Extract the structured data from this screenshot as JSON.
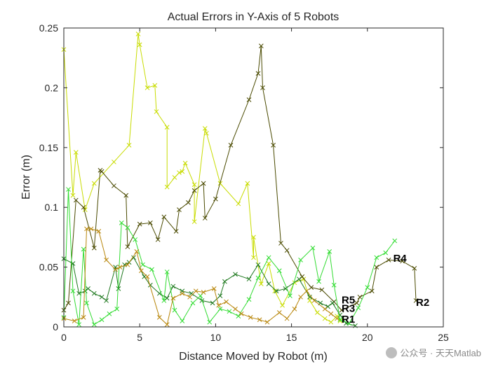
{
  "chart_data": {
    "type": "line",
    "title": "Actual Errors in Y-Axis of 5 Robots",
    "xlabel": "Distance Moved by Robot (m)",
    "ylabel": "Error (m)",
    "xlim": [
      0,
      25
    ],
    "ylim": [
      0,
      0.25
    ],
    "xticks": [
      "0",
      "5",
      "10",
      "15",
      "20",
      "25"
    ],
    "yticks": [
      "0",
      "0.05",
      "0.1",
      "0.15",
      "0.2",
      "0.25"
    ],
    "marker": "x",
    "grid": false,
    "series": [
      {
        "name": "R1",
        "color": "#c8dc00",
        "x": [
          0,
          0.6,
          0.8,
          1.4,
          2.0,
          3.3,
          4.3,
          4.9,
          5.0,
          5.5,
          6.0,
          6.1,
          6.8,
          6.8,
          7.3,
          7.6,
          7.8,
          8.0,
          8.6,
          8.6,
          9.3,
          9.4,
          10.3,
          11.5,
          12.1,
          12.5,
          12.5,
          13.0,
          13.5,
          13.9,
          14.4,
          15.2,
          15.8,
          16.2,
          16.7,
          17.2,
          17.6,
          18.0,
          18.2
        ],
        "y": [
          0.232,
          0.11,
          0.146,
          0.098,
          0.12,
          0.138,
          0.152,
          0.245,
          0.236,
          0.2,
          0.202,
          0.18,
          0.167,
          0.117,
          0.125,
          0.129,
          0.13,
          0.137,
          0.119,
          0.088,
          0.166,
          0.162,
          0.12,
          0.103,
          0.12,
          0.058,
          0.075,
          0.036,
          0.053,
          0.03,
          0.018,
          0.037,
          0.04,
          0.022,
          0.012,
          0.007,
          0.004,
          0.009,
          0.005
        ]
      },
      {
        "name": "R2",
        "color": "#4a4a00",
        "x": [
          0,
          0.3,
          0.8,
          1.3,
          2.0,
          2.4,
          2.5,
          3.3,
          4.1,
          4.2,
          5.0,
          5.7,
          6.2,
          6.6,
          7.4,
          7.6,
          8.2,
          8.6,
          9.2,
          9.3,
          10.0,
          11.0,
          12.2,
          12.8,
          13.0,
          13.1,
          13.8,
          14.3,
          14.7,
          15.7,
          16.3,
          17.0,
          17.8,
          18.3,
          19.3,
          19.5,
          20.3,
          20.6,
          21.4,
          22.3,
          23.1,
          23.2
        ],
        "y": [
          0.014,
          0.02,
          0.106,
          0.1,
          0.066,
          0.131,
          0.13,
          0.118,
          0.11,
          0.067,
          0.086,
          0.087,
          0.073,
          0.092,
          0.08,
          0.098,
          0.104,
          0.114,
          0.12,
          0.091,
          0.107,
          0.152,
          0.19,
          0.212,
          0.235,
          0.2,
          0.152,
          0.07,
          0.064,
          0.042,
          0.033,
          0.031,
          0.021,
          0.014,
          0.02,
          0.025,
          0.03,
          0.05,
          0.056,
          0.055,
          0.049,
          0.022
        ]
      },
      {
        "name": "R3",
        "color": "#1e781e",
        "x": [
          0,
          0.6,
          1.0,
          1.4,
          1.6,
          2.0,
          2.5,
          2.8,
          3.4,
          3.6,
          4.0,
          4.3,
          4.6,
          5.3,
          5.7,
          6.3,
          6.8,
          7.2,
          7.8,
          8.4,
          9.1,
          9.8,
          10.3,
          10.6,
          11.3,
          12.2,
          12.8,
          13.5,
          14.0,
          14.6,
          15.5,
          16.2,
          16.9,
          17.4,
          17.7,
          18.2,
          18.6,
          19.2
        ],
        "y": [
          0.057,
          0.053,
          0.028,
          0.03,
          0.032,
          0.028,
          0.025,
          0.022,
          0.05,
          0.032,
          0.052,
          0.054,
          0.058,
          0.042,
          0.035,
          0.028,
          0.024,
          0.034,
          0.03,
          0.028,
          0.022,
          0.02,
          0.026,
          0.038,
          0.044,
          0.04,
          0.052,
          0.036,
          0.03,
          0.032,
          0.04,
          0.025,
          0.02,
          0.017,
          0.02,
          0.01,
          0.003,
          0.001
        ]
      },
      {
        "name": "R4",
        "color": "#32dc32",
        "x": [
          0,
          0.3,
          0.6,
          1.0,
          1.3,
          1.5,
          2.0,
          2.5,
          3.0,
          3.5,
          3.8,
          4.2,
          4.7,
          5.2,
          5.8,
          6.6,
          6.8,
          7.3,
          7.8,
          8.5,
          9.0,
          9.6,
          10.3,
          10.9,
          11.5,
          12.2,
          12.8,
          13.5,
          14.2,
          14.9,
          15.6,
          16.4,
          16.8,
          17.5,
          17.8,
          18.2,
          18.8,
          19.4,
          20.0,
          20.6,
          21.2,
          21.8
        ],
        "y": [
          0.008,
          0.115,
          0.03,
          0.002,
          0.065,
          0.02,
          0.002,
          0.006,
          0.011,
          0.015,
          0.087,
          0.083,
          0.073,
          0.052,
          0.048,
          0.022,
          0.046,
          0.014,
          0.005,
          0.02,
          0.026,
          0.004,
          0.015,
          0.013,
          0.009,
          0.023,
          0.041,
          0.058,
          0.047,
          0.026,
          0.056,
          0.066,
          0.038,
          0.063,
          0.035,
          0.006,
          0.003,
          0.016,
          0.033,
          0.058,
          0.062,
          0.072
        ]
      },
      {
        "name": "R5",
        "color": "#b8860b",
        "x": [
          0,
          0.7,
          1.3,
          1.5,
          1.8,
          2.3,
          2.8,
          3.4,
          3.7,
          4.2,
          4.8,
          5.1,
          5.5,
          6.3,
          6.8,
          7.2,
          7.8,
          8.3,
          8.7,
          9.2,
          9.9,
          10.2,
          10.7,
          11.3,
          11.7,
          12.3,
          12.9,
          13.4,
          14.2,
          14.7,
          15.2,
          15.6,
          16.0,
          16.5,
          17.2,
          17.6,
          18.0
        ],
        "y": [
          0.007,
          0.005,
          0.008,
          0.082,
          0.082,
          0.08,
          0.056,
          0.048,
          0.05,
          0.052,
          0.063,
          0.047,
          0.042,
          0.008,
          0.002,
          0.024,
          0.028,
          0.025,
          0.03,
          0.029,
          0.032,
          0.018,
          0.021,
          0.015,
          0.011,
          0.008,
          0.006,
          0.004,
          0.012,
          0.007,
          0.015,
          0.025,
          0.03,
          0.022,
          0.015,
          0.011,
          0.007
        ]
      }
    ],
    "labels": [
      {
        "text": "R1",
        "x": 18.3,
        "y": 0.007
      },
      {
        "text": "R2",
        "x": 23.2,
        "y": 0.021
      },
      {
        "text": "R3",
        "x": 18.3,
        "y": 0.016
      },
      {
        "text": "R4",
        "x": 21.7,
        "y": 0.058
      },
      {
        "text": "R5",
        "x": 18.3,
        "y": 0.023
      }
    ]
  },
  "watermark": {
    "text": "公众号 · 天天Matlab",
    "icon": "wechat-icon"
  }
}
